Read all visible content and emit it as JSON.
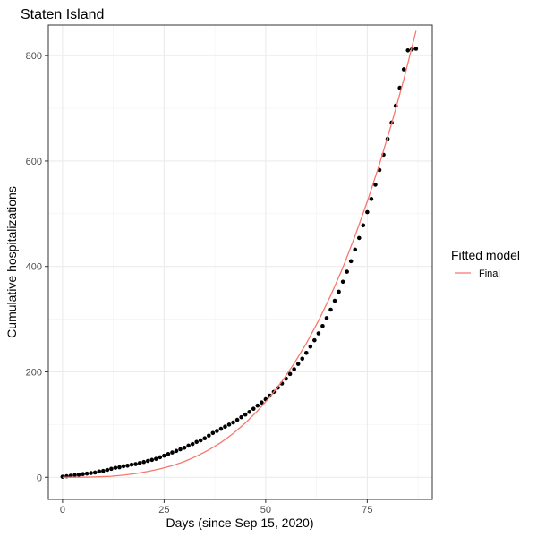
{
  "chart_data": {
    "type": "scatter",
    "title": "Staten Island",
    "xlabel": "Days (since Sep 15, 2020)",
    "ylabel": "Cumulative hospitalizations",
    "xlim": [
      -3.5,
      91
    ],
    "ylim": [
      -42,
      858
    ],
    "x_ticks": [
      0,
      25,
      50,
      75
    ],
    "y_ticks": [
      0,
      200,
      400,
      600,
      800
    ],
    "grid": true,
    "legend": {
      "title": "Fitted model",
      "position": "right",
      "entries": [
        {
          "label": "Final",
          "color": "#F8766D"
        }
      ]
    },
    "series": [
      {
        "kind": "points",
        "color": "#000000",
        "x": [
          0,
          1,
          2,
          3,
          4,
          5,
          6,
          7,
          8,
          9,
          10,
          11,
          12,
          13,
          14,
          15,
          16,
          17,
          18,
          19,
          20,
          21,
          22,
          23,
          24,
          25,
          26,
          27,
          28,
          29,
          30,
          31,
          32,
          33,
          34,
          35,
          36,
          37,
          38,
          39,
          40,
          41,
          42,
          43,
          44,
          45,
          46,
          47,
          48,
          49,
          50,
          51,
          52,
          53,
          54,
          55,
          56,
          57,
          58,
          59,
          60,
          61,
          62,
          63,
          64,
          65,
          66,
          67,
          68,
          69,
          70,
          71,
          72,
          73,
          74,
          75,
          76,
          77,
          78,
          79,
          80,
          81,
          82,
          83,
          84,
          85,
          86,
          87
        ],
        "y": [
          1,
          2,
          3,
          4,
          5,
          6,
          7,
          8,
          9,
          11,
          12,
          14,
          16,
          18,
          19,
          21,
          22,
          24,
          25,
          27,
          29,
          31,
          33,
          35,
          38,
          41,
          44,
          47,
          50,
          53,
          56,
          60,
          63,
          67,
          70,
          74,
          79,
          84,
          88,
          92,
          96,
          100,
          104,
          109,
          114,
          119,
          124,
          130,
          136,
          142,
          148,
          155,
          162,
          170,
          178,
          187,
          196,
          205,
          215,
          225,
          236,
          248,
          260,
          273,
          287,
          302,
          318,
          335,
          352,
          371,
          390,
          410,
          432,
          454,
          478,
          503,
          528,
          555,
          583,
          612,
          642,
          673,
          705,
          739,
          774,
          810,
          812,
          813
        ]
      },
      {
        "name": "Final",
        "kind": "line",
        "color": "#F8766D",
        "x": [
          0,
          3,
          6,
          9,
          12,
          15,
          18,
          21,
          24,
          27,
          30,
          33,
          36,
          39,
          42,
          45,
          48,
          51,
          54,
          57,
          60,
          63,
          66,
          69,
          72,
          75,
          78,
          81,
          84,
          87
        ],
        "y": [
          0,
          0.1,
          0.3,
          1,
          2,
          4,
          7,
          11,
          16,
          22,
          30,
          40,
          52,
          66,
          83,
          103,
          126,
          152,
          182,
          216,
          254,
          297,
          345,
          398,
          458,
          523,
          594,
          671,
          755,
          847
        ]
      }
    ]
  }
}
